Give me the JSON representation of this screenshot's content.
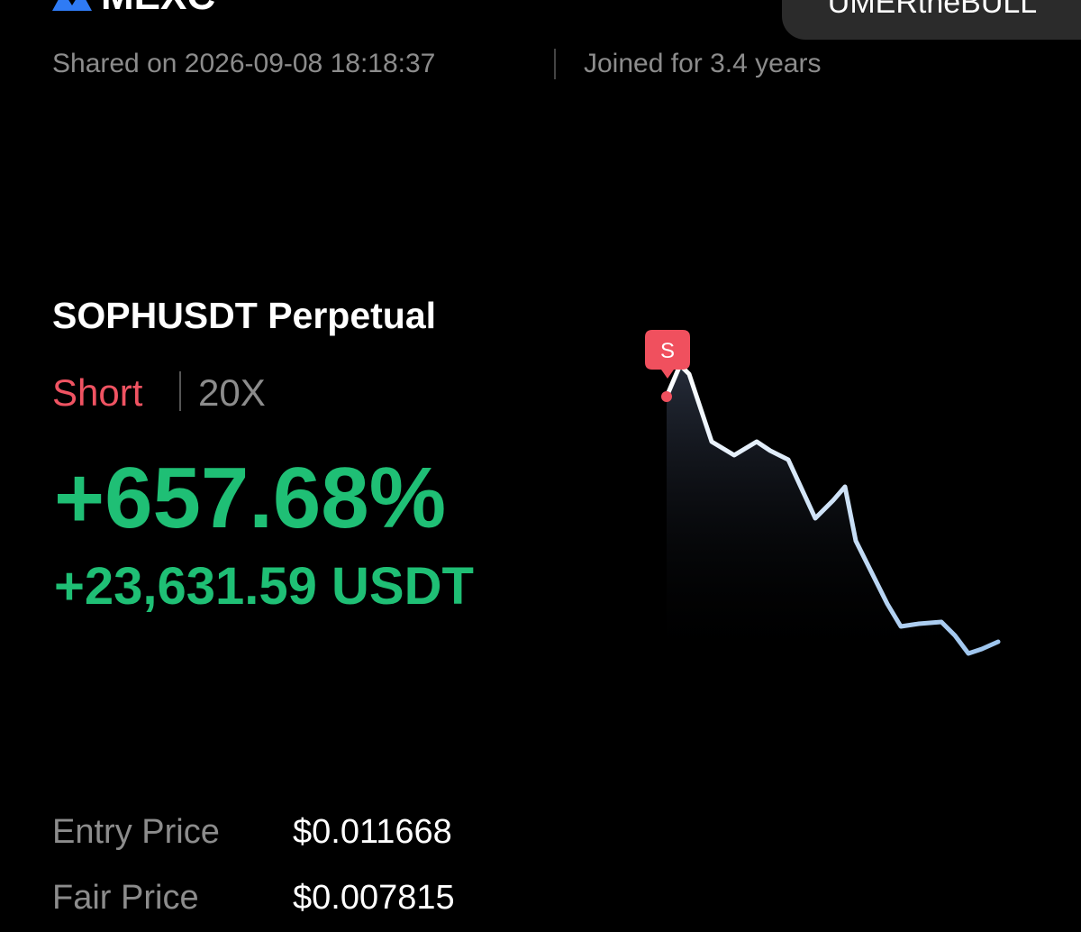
{
  "header": {
    "logo": "MEXC",
    "username": "UMERtheBULL",
    "shared": "Shared on 2026-09-08 18:18:37",
    "joined": "Joined for 3.4 years"
  },
  "position": {
    "pair": "SOPHUSDT Perpetual",
    "side": "Short",
    "leverage": "20X",
    "roi": "+657.68%",
    "pnl": "+23,631.59 USDT",
    "marker": "S"
  },
  "prices": [
    {
      "label": "Entry Price",
      "value": "$0.011668"
    },
    {
      "label": "Fair Price",
      "value": "$0.007815"
    }
  ]
}
